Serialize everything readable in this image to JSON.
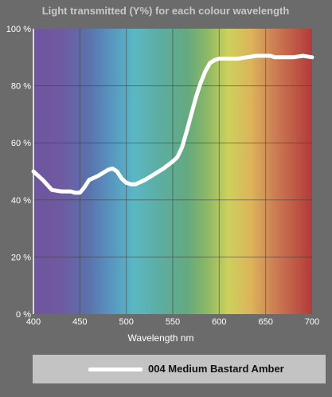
{
  "chart_data": {
    "type": "line",
    "title": "Light transmitted (Y%) for each colour wavelength",
    "xlabel": "Wavelength nm",
    "ylabel": "",
    "xlim": [
      400,
      700
    ],
    "ylim": [
      0,
      100
    ],
    "x_ticks": [
      400,
      450,
      500,
      550,
      600,
      650,
      700
    ],
    "y_ticks": [
      0,
      20,
      40,
      60,
      80,
      100
    ],
    "y_tick_labels": [
      "0 %",
      "20 %",
      "40 %",
      "60 %",
      "80 %",
      "100 %"
    ],
    "grid": true,
    "legend_position": "bottom",
    "series": [
      {
        "name": "004 Medium Bastard Amber",
        "color": "#ffffff",
        "x": [
          400,
          410,
          420,
          430,
          440,
          445,
          450,
          455,
          460,
          470,
          480,
          485,
          490,
          495,
          500,
          505,
          510,
          520,
          530,
          540,
          550,
          555,
          560,
          565,
          570,
          575,
          580,
          585,
          590,
          595,
          600,
          610,
          620,
          630,
          640,
          650,
          655,
          660,
          670,
          680,
          690,
          700
        ],
        "y": [
          50,
          47,
          43.5,
          43,
          43,
          42.5,
          42.5,
          44.5,
          47,
          48.5,
          50.5,
          51,
          50,
          47.5,
          46,
          45.5,
          45.5,
          47,
          49,
          51,
          53.5,
          55,
          58.5,
          64,
          70,
          76,
          81,
          85,
          88,
          89,
          89.5,
          89.5,
          89.5,
          90,
          90.5,
          90.5,
          90.5,
          90,
          90,
          90,
          90.5,
          90
        ]
      }
    ]
  }
}
